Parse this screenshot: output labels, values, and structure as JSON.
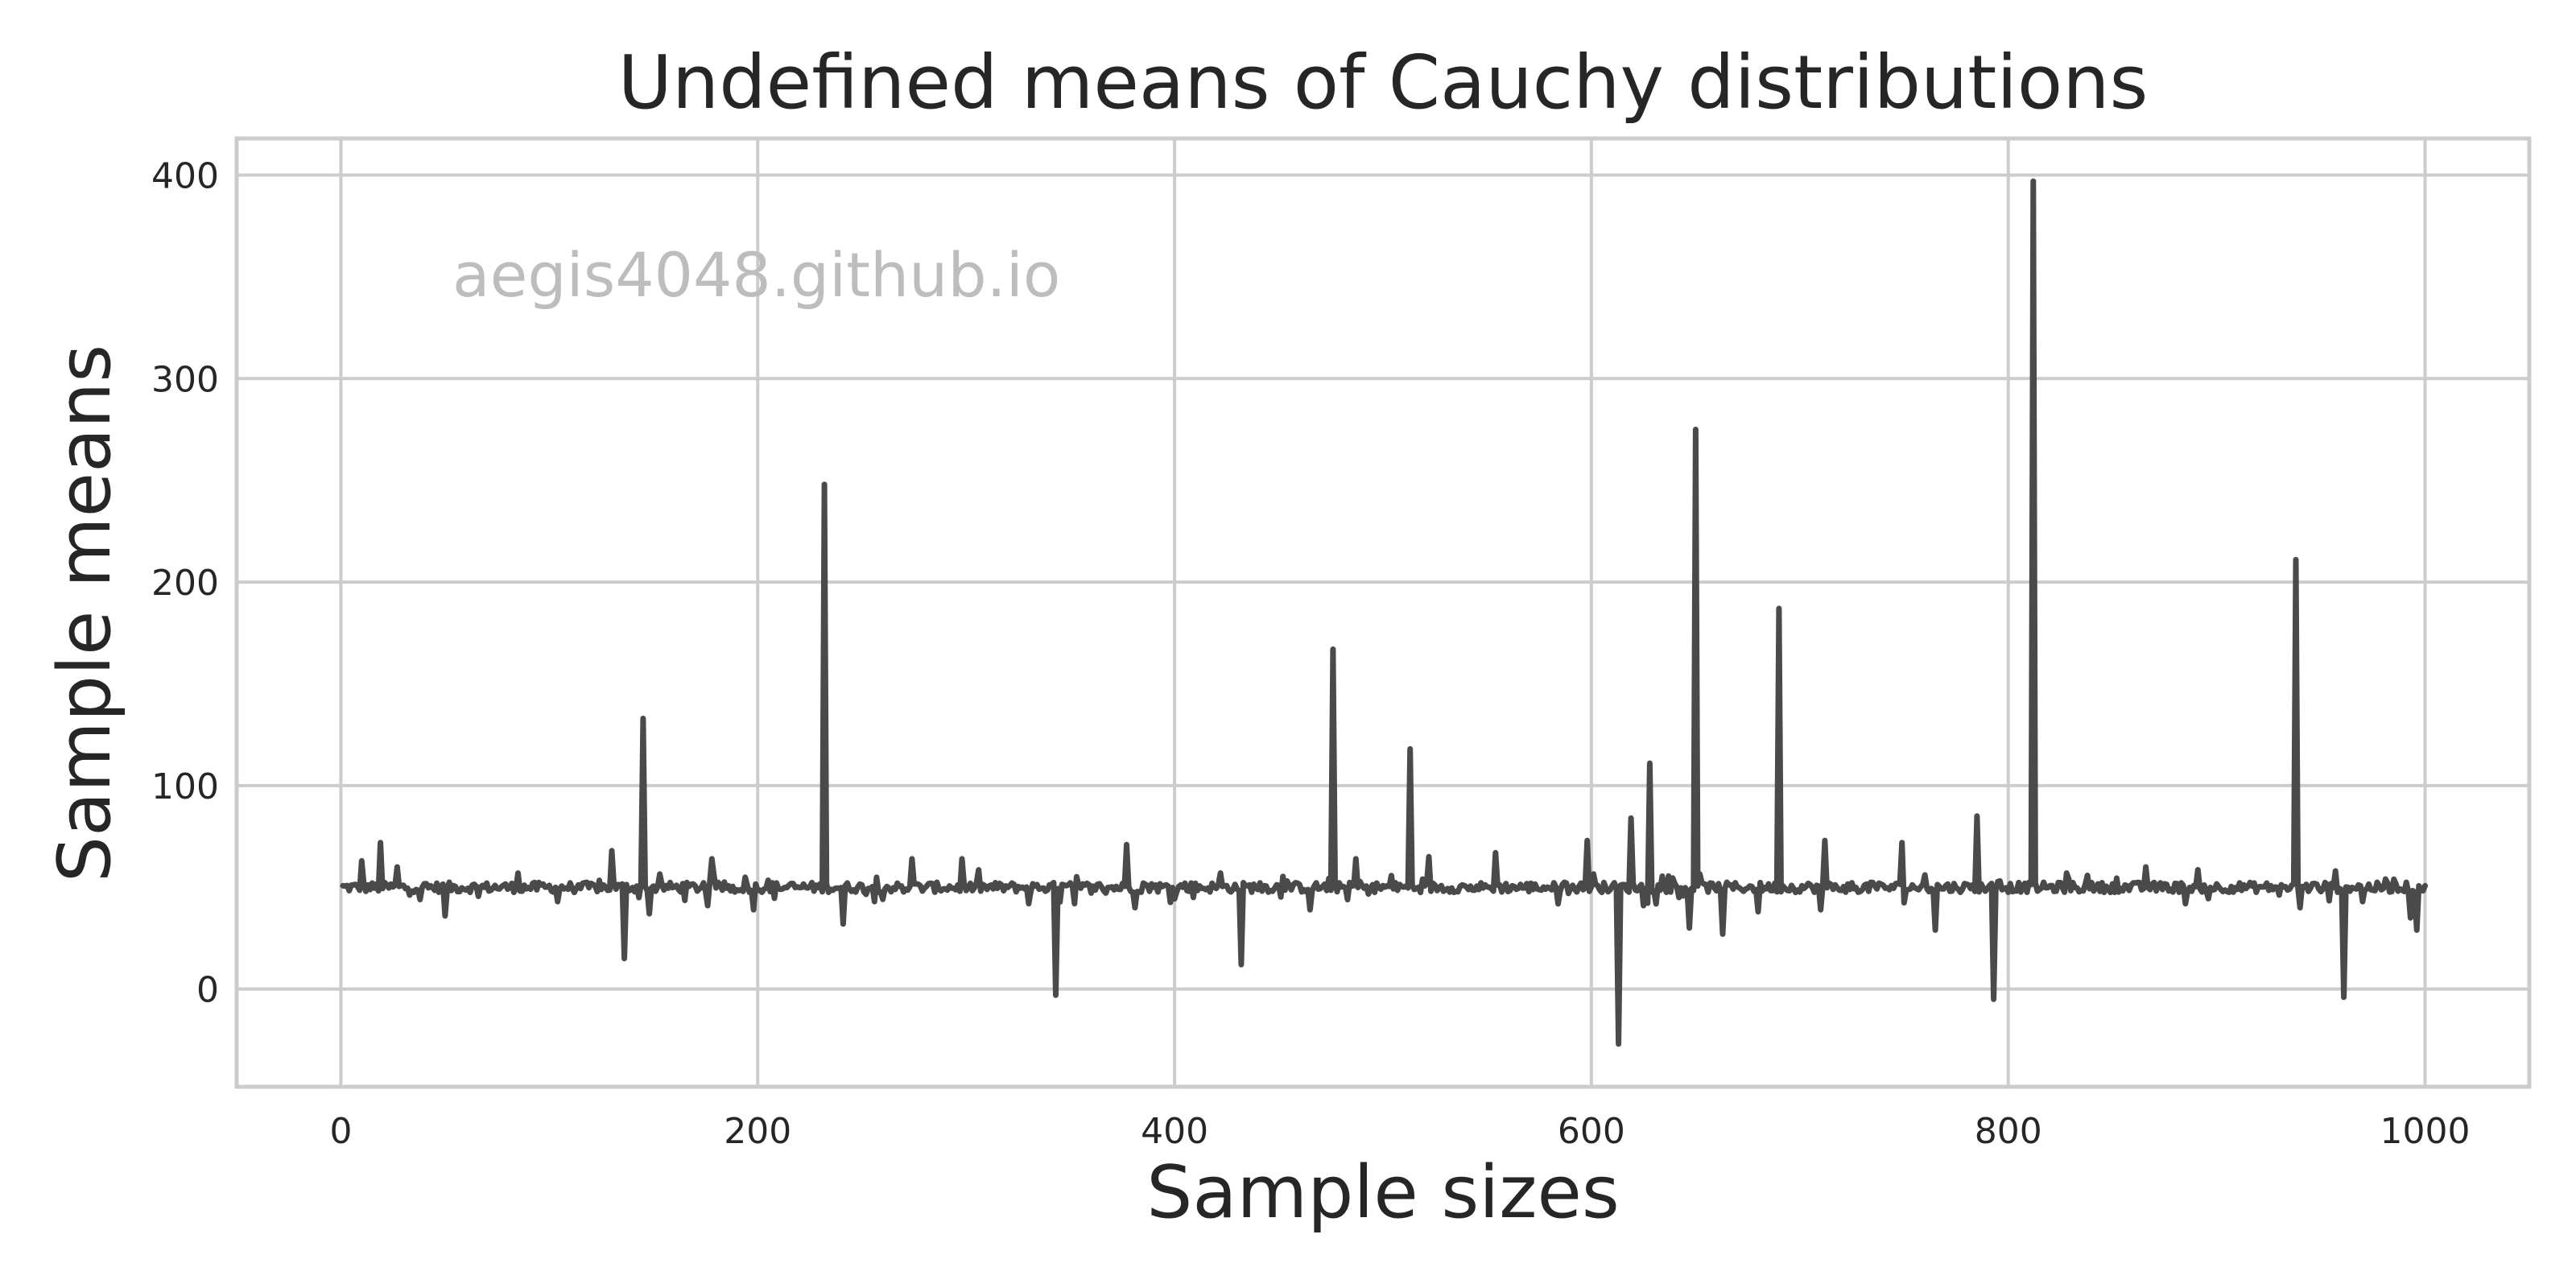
{
  "chart_data": {
    "type": "line",
    "title": "Undefined means of Cauchy distributions",
    "xlabel": "Sample sizes",
    "ylabel": "Sample means",
    "watermark": "aegis4048.github.io",
    "xlim": [
      -50,
      1050
    ],
    "ylim": [
      -48,
      418
    ],
    "xticks": [
      0,
      200,
      400,
      600,
      800,
      1000
    ],
    "yticks": [
      0,
      100,
      200,
      300,
      400
    ],
    "xtick_labels": [
      "0",
      "200",
      "400",
      "600",
      "800",
      "1000"
    ],
    "ytick_labels": [
      "0",
      "100",
      "200",
      "300",
      "400"
    ],
    "grid": true,
    "colors": {
      "series": "#4a4a4a",
      "grid": "#cccccc",
      "text": "#262626",
      "watermark": "#bdbdbd"
    },
    "series": [
      {
        "x_start": 1,
        "x_end": 1000,
        "baseline": 50,
        "spikes": [
          {
            "x": 10,
            "y": 63
          },
          {
            "x": 19,
            "y": 72
          },
          {
            "x": 27,
            "y": 60
          },
          {
            "x": 38,
            "y": 44
          },
          {
            "x": 50,
            "y": 36
          },
          {
            "x": 85,
            "y": 57
          },
          {
            "x": 104,
            "y": 43
          },
          {
            "x": 130,
            "y": 68
          },
          {
            "x": 136,
            "y": 15
          },
          {
            "x": 145,
            "y": 133
          },
          {
            "x": 148,
            "y": 37
          },
          {
            "x": 176,
            "y": 41
          },
          {
            "x": 178,
            "y": 64
          },
          {
            "x": 198,
            "y": 39
          },
          {
            "x": 232,
            "y": 248
          },
          {
            "x": 241,
            "y": 32
          },
          {
            "x": 256,
            "y": 43
          },
          {
            "x": 274,
            "y": 64
          },
          {
            "x": 298,
            "y": 64
          },
          {
            "x": 330,
            "y": 42
          },
          {
            "x": 343,
            "y": -3
          },
          {
            "x": 352,
            "y": 42
          },
          {
            "x": 377,
            "y": 71
          },
          {
            "x": 381,
            "y": 40
          },
          {
            "x": 422,
            "y": 57
          },
          {
            "x": 432,
            "y": 12
          },
          {
            "x": 465,
            "y": 39
          },
          {
            "x": 476,
            "y": 167
          },
          {
            "x": 487,
            "y": 64
          },
          {
            "x": 513,
            "y": 118
          },
          {
            "x": 522,
            "y": 65
          },
          {
            "x": 554,
            "y": 67
          },
          {
            "x": 598,
            "y": 73
          },
          {
            "x": 613,
            "y": -27
          },
          {
            "x": 619,
            "y": 84
          },
          {
            "x": 625,
            "y": 41
          },
          {
            "x": 628,
            "y": 111
          },
          {
            "x": 642,
            "y": 45
          },
          {
            "x": 647,
            "y": 30
          },
          {
            "x": 650,
            "y": 275
          },
          {
            "x": 663,
            "y": 27
          },
          {
            "x": 680,
            "y": 38
          },
          {
            "x": 690,
            "y": 187
          },
          {
            "x": 710,
            "y": 39
          },
          {
            "x": 712,
            "y": 73
          },
          {
            "x": 749,
            "y": 72
          },
          {
            "x": 765,
            "y": 29
          },
          {
            "x": 785,
            "y": 85
          },
          {
            "x": 793,
            "y": -5
          },
          {
            "x": 812,
            "y": 397
          },
          {
            "x": 828,
            "y": 57
          },
          {
            "x": 866,
            "y": 60
          },
          {
            "x": 885,
            "y": 42
          },
          {
            "x": 938,
            "y": 211
          },
          {
            "x": 940,
            "y": 40
          },
          {
            "x": 957,
            "y": 58
          },
          {
            "x": 961,
            "y": -4
          },
          {
            "x": 970,
            "y": 43
          },
          {
            "x": 985,
            "y": 54
          },
          {
            "x": 993,
            "y": 35
          },
          {
            "x": 996,
            "y": 29
          }
        ]
      }
    ]
  }
}
